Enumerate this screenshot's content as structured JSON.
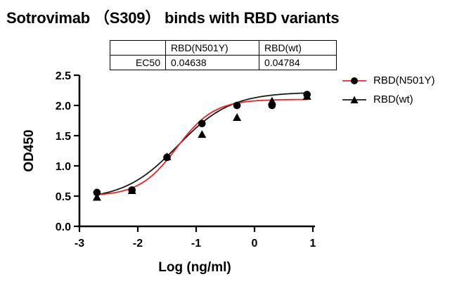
{
  "title": "Sotrovimab （S309） binds with RBD variants",
  "ec50_table": {
    "headers": [
      "",
      "RBD(N501Y)",
      "RBD(wt)"
    ],
    "rows": [
      [
        "EC50",
        "0.04638",
        "0.04784"
      ]
    ]
  },
  "legend": [
    {
      "label": "RBD(N501Y)",
      "line_color": "#ed2024",
      "marker": "circle",
      "marker_color": "#000000"
    },
    {
      "label": "RBD(wt)",
      "line_color": "#1a1a1a",
      "marker": "triangle",
      "marker_color": "#000000"
    }
  ],
  "chart_data": {
    "type": "scatter",
    "title": "Sotrovimab （S309） binds with RBD variants",
    "xlabel": "Log (ng/ml)",
    "ylabel": "OD450",
    "xlim": [
      -3,
      1
    ],
    "ylim": [
      0,
      2.5
    ],
    "xticks": [
      "-3",
      "-2",
      "-1",
      "0",
      "1"
    ],
    "yticks": [
      "0.0",
      "0.5",
      "1.0",
      "1.5",
      "2.0",
      "2.5"
    ],
    "grid": false,
    "legend_position": "right",
    "series": [
      {
        "name": "RBD(N501Y)",
        "marker": "circle",
        "color": "#ed2024",
        "ec50": "0.04638",
        "x": [
          -2.7,
          -2.1,
          -1.5,
          -0.9,
          -0.3,
          0.3,
          0.9
        ],
        "y": [
          0.56,
          0.6,
          1.14,
          1.7,
          2.0,
          2.0,
          2.18
        ],
        "fit": {
          "bottom": 0.5,
          "top": 2.1,
          "logec50": -1.334,
          "hill": 1.35
        }
      },
      {
        "name": "RBD(wt)",
        "marker": "triangle",
        "color": "#1a1a1a",
        "ec50": "0.04784",
        "x": [
          -2.7,
          -2.1,
          -1.5,
          -0.9,
          -0.3,
          0.3,
          0.9
        ],
        "y": [
          0.48,
          0.59,
          1.15,
          1.52,
          1.8,
          2.07,
          2.15
        ],
        "fit": {
          "bottom": 0.44,
          "top": 2.22,
          "logec50": -1.32,
          "hill": 0.95
        }
      }
    ]
  }
}
